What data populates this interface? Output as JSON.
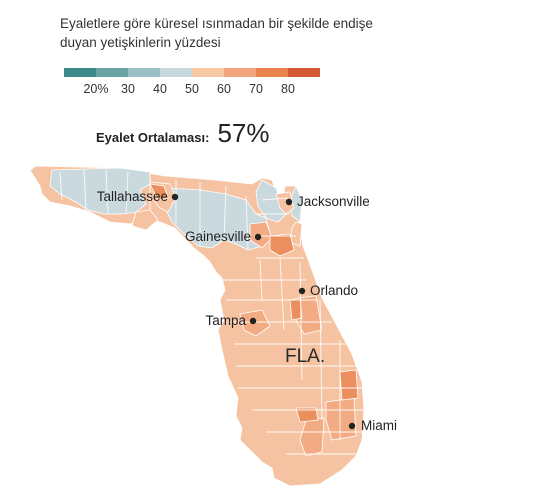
{
  "title": "Eyaletlere göre küresel ısınmadan bir şekilde endişe duyan yetişkinlerin yüzdesi",
  "legend": {
    "colors": [
      "#3d8a8a",
      "#6aa2a6",
      "#9bbfc4",
      "#c8d8dc",
      "#f8c7a4",
      "#f2a47c",
      "#e9844f",
      "#d45a35"
    ],
    "ticks": [
      "20%",
      "30",
      "40",
      "50",
      "60",
      "70",
      "80"
    ]
  },
  "average": {
    "label": "Eyalet Ortalaması:",
    "value": "57%"
  },
  "map_colors": {
    "blue": "#c9d9de",
    "peach": "#f6c3a2",
    "light_orange": "#f3ab84",
    "orange": "#ec8f5e",
    "dark_orange": "#e07a47",
    "border": "#ffffff"
  },
  "state_label": "FLA.",
  "cities": [
    {
      "id": "tallahassee",
      "name": "Tallahassee"
    },
    {
      "id": "jacksonville",
      "name": "Jacksonville"
    },
    {
      "id": "gainesville",
      "name": "Gainesville"
    },
    {
      "id": "orlando",
      "name": "Orlando"
    },
    {
      "id": "tampa",
      "name": "Tampa"
    },
    {
      "id": "miami",
      "name": "Miami"
    }
  ]
}
